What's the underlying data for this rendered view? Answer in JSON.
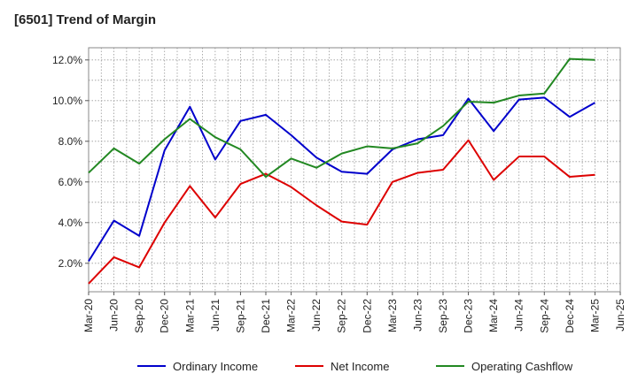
{
  "title": "[6501]  Trend of Margin",
  "chart_data": {
    "type": "line",
    "title": "[6501]  Trend of Margin",
    "xlabel": "",
    "ylabel": "",
    "categories": [
      "Mar-20",
      "Jun-20",
      "Sep-20",
      "Dec-20",
      "Mar-21",
      "Jun-21",
      "Sep-21",
      "Dec-21",
      "Mar-22",
      "Jun-22",
      "Sep-22",
      "Dec-22",
      "Mar-23",
      "Jun-23",
      "Sep-23",
      "Dec-23",
      "Mar-24",
      "Jun-24",
      "Sep-24",
      "Dec-24",
      "Mar-25",
      "Jun-25"
    ],
    "ylim": [
      0.6,
      12.6
    ],
    "yticks": [
      2.0,
      4.0,
      6.0,
      8.0,
      10.0,
      12.0
    ],
    "ytick_labels": [
      "2.0%",
      "4.0%",
      "6.0%",
      "8.0%",
      "10.0%",
      "12.0%"
    ],
    "grid": true,
    "legend_position": "bottom",
    "series": [
      {
        "name": "Ordinary Income",
        "color": "#0000cc",
        "values": [
          2.1,
          4.1,
          3.35,
          7.55,
          9.7,
          7.1,
          9.0,
          9.3,
          8.3,
          7.2,
          6.5,
          6.4,
          7.6,
          8.1,
          8.3,
          10.1,
          8.5,
          10.05,
          10.15,
          9.2,
          9.9,
          null
        ]
      },
      {
        "name": "Net Income",
        "color": "#dd0000",
        "values": [
          1.0,
          2.3,
          1.8,
          4.0,
          5.8,
          4.25,
          5.9,
          6.4,
          5.75,
          4.85,
          4.05,
          3.9,
          6.0,
          6.45,
          6.6,
          8.05,
          6.1,
          7.25,
          7.25,
          6.25,
          6.35,
          null
        ]
      },
      {
        "name": "Operating Cashflow",
        "color": "#228822",
        "values": [
          6.45,
          7.65,
          6.9,
          8.1,
          9.1,
          8.2,
          7.6,
          6.25,
          7.15,
          6.7,
          7.4,
          7.75,
          7.65,
          7.9,
          8.75,
          9.95,
          9.9,
          10.25,
          10.35,
          12.05,
          12.0,
          null
        ]
      }
    ]
  }
}
